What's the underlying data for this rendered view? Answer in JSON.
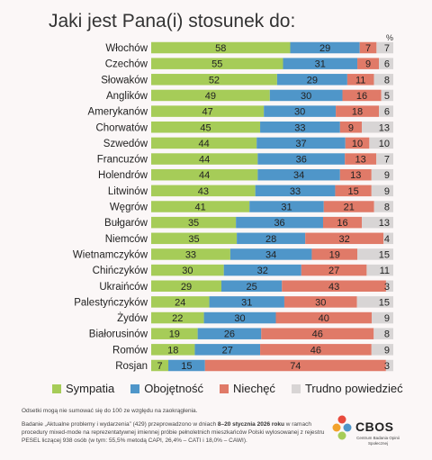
{
  "title": "Jaki jest Pana(i) stosunek do:",
  "percent_sign": "%",
  "colors": {
    "sympatia": "#a6cc58",
    "obojetnosc": "#4f96c9",
    "niechec": "#e07a68",
    "trudno": "#d8d5d5"
  },
  "legend": [
    {
      "label": "Sympatia",
      "color": "#a6cc58"
    },
    {
      "label": "Obojętność",
      "color": "#4f96c9"
    },
    {
      "label": "Niechęć",
      "color": "#e07a68"
    },
    {
      "label": "Trudno powiedzieć",
      "color": "#d8d5d5"
    }
  ],
  "chart_data": {
    "type": "bar",
    "stacked": true,
    "orientation": "horizontal",
    "categories": [
      "Włochów",
      "Czechów",
      "Słowaków",
      "Anglików",
      "Amerykanów",
      "Chorwatów",
      "Szwedów",
      "Francuzów",
      "Holendrów",
      "Litwinów",
      "Węgrów",
      "Bułgarów",
      "Niemców",
      "Wietnamczyków",
      "Chińczyków",
      "Ukraińców",
      "Palestyńczyków",
      "Żydów",
      "Białorusinów",
      "Romów",
      "Rosjan"
    ],
    "series": [
      {
        "name": "Sympatia",
        "values": [
          58,
          55,
          52,
          49,
          47,
          45,
          44,
          44,
          44,
          43,
          41,
          35,
          35,
          33,
          30,
          29,
          24,
          22,
          19,
          18,
          7
        ]
      },
      {
        "name": "Obojętność",
        "values": [
          29,
          31,
          29,
          30,
          30,
          33,
          37,
          36,
          34,
          33,
          31,
          36,
          28,
          34,
          32,
          25,
          31,
          30,
          26,
          27,
          15
        ]
      },
      {
        "name": "Niechęć",
        "values": [
          7,
          9,
          11,
          16,
          18,
          9,
          10,
          13,
          13,
          15,
          21,
          16,
          32,
          19,
          27,
          43,
          30,
          40,
          46,
          46,
          74
        ]
      },
      {
        "name": "Trudno powiedzieć",
        "values": [
          7,
          6,
          8,
          5,
          6,
          13,
          10,
          7,
          9,
          9,
          8,
          13,
          4,
          15,
          11,
          3,
          15,
          9,
          8,
          9,
          3
        ]
      }
    ],
    "unit": "%"
  },
  "footer": {
    "note": "Odsetki mogą nie sumować się do 100 ze względu na zaokrąglenia.",
    "method_a": "Badanie „Aktualne problemy i wydarzenia” (429) przeprowadzono w dniach ",
    "method_dates": "8–20 stycznia 2026 roku",
    "method_b": " w ramach procedury mixed-mode na reprezentatywnej imiennej próbie pełnoletnich mieszkańców Polski wylosowanej z rejestru PESEL liczącej 938 osób (w tym: 55,5% metodą CAPI, 26,4% – CATI i 18,0% – CAWI)."
  },
  "logo": {
    "name": "CBOS",
    "subtitle": "Centrum Badania Opinii Społecznej"
  }
}
